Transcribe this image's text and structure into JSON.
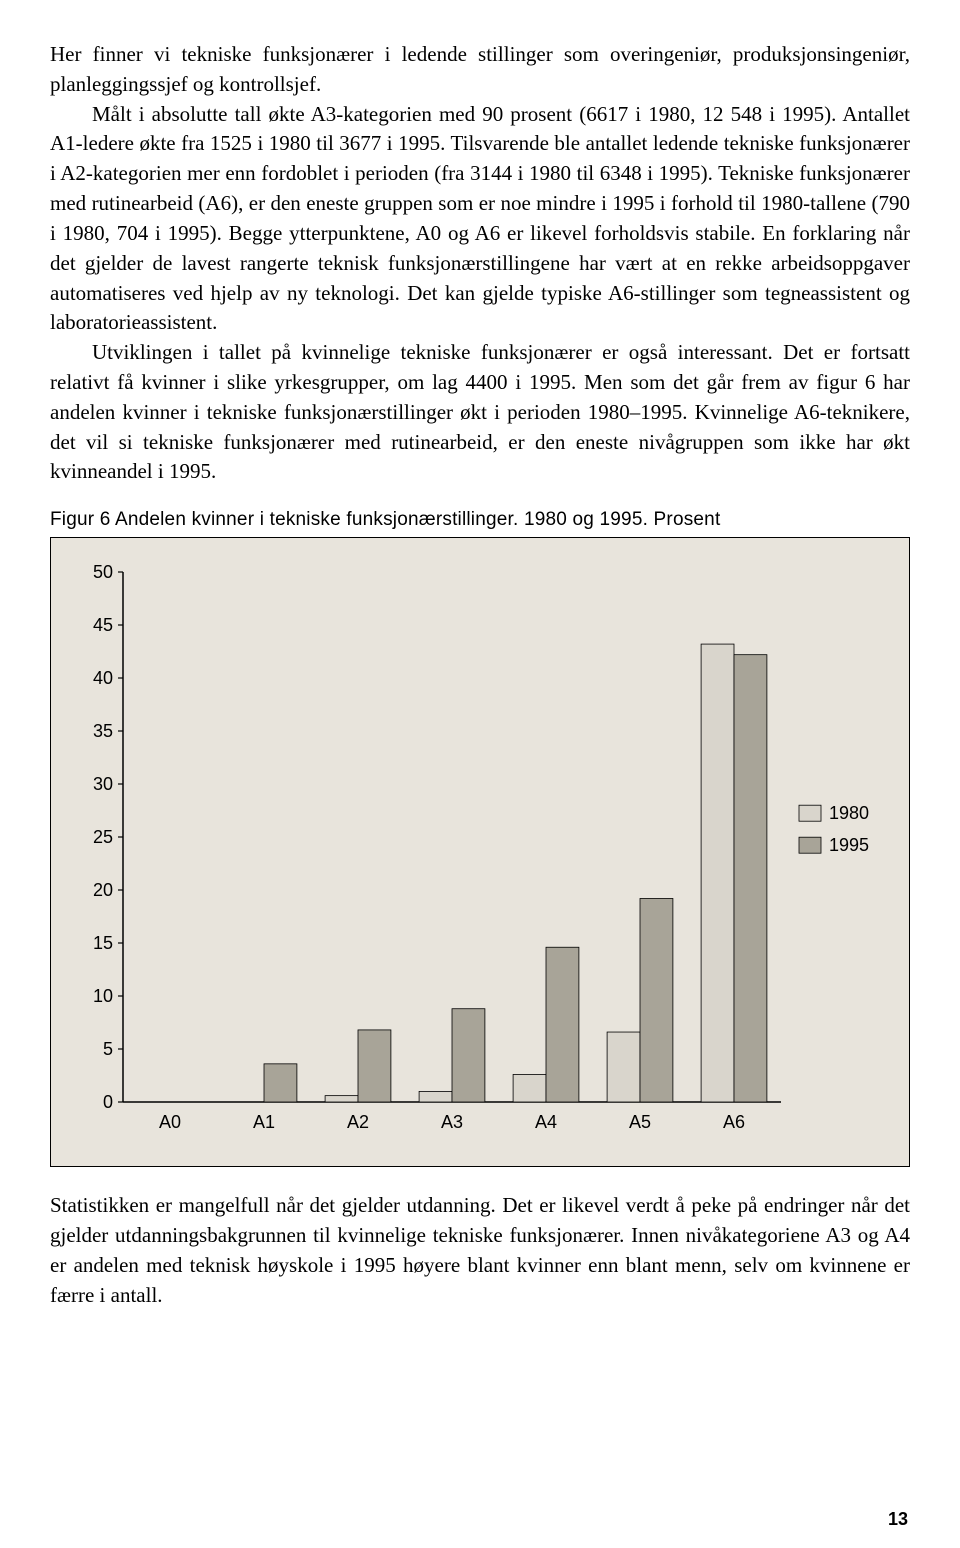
{
  "para1": "Her finner vi tekniske funksjonærer i ledende stillinger som overingeniør, produksjonsingeniør, planleggingssjef og kontrollsjef.",
  "para2": "Målt i absolutte tall økte A3-kategorien med 90 prosent (6617 i 1980, 12 548 i 1995). Antallet A1-ledere økte fra 1525 i 1980 til 3677 i 1995. Tilsvarende ble antallet ledende tekniske funksjonærer i A2-kategorien mer enn fordoblet i perioden (fra 3144 i 1980 til 6348 i 1995). Tekniske funksjonærer med rutinearbeid (A6), er den eneste gruppen som er noe mindre i 1995 i forhold til 1980-tallene (790 i 1980, 704 i 1995). Begge ytterpunktene, A0 og A6 er likevel forholdsvis stabile. En forklaring når det gjelder de lavest rangerte teknisk funksjonærstillingene har vært at en rekke arbeidsoppgaver automatiseres ved hjelp av ny teknologi. Det kan gjelde typiske A6-stillinger som tegneassistent og laboratorieassistent.",
  "para3": "Utviklingen i tallet på kvinnelige tekniske funksjonærer er også interessant. Det er fortsatt relativt få kvinner i slike yrkesgrupper, om lag 4400 i 1995. Men som det går frem av figur 6 har andelen kvinner i tekniske funksjonærstillinger økt i perioden 1980–1995. Kvinnelige A6-teknikere, det vil si tekniske funksjonærer med rutinearbeid, er den eneste nivågruppen som ikke har økt kvinneandel i 1995.",
  "figure_caption": "Figur 6 Andelen kvinner i tekniske funksjonærstillinger. 1980 og 1995. Prosent",
  "chart": {
    "type": "bar",
    "categories": [
      "A0",
      "A1",
      "A2",
      "A3",
      "A4",
      "A5",
      "A6"
    ],
    "series": [
      {
        "name": "1980",
        "values": [
          0,
          0,
          0.6,
          1.0,
          2.6,
          6.6,
          43.2
        ],
        "color": "#d9d5cc"
      },
      {
        "name": "1995",
        "values": [
          0,
          3.6,
          6.8,
          8.8,
          14.6,
          19.2,
          42.2
        ],
        "color": "#a8a498"
      }
    ],
    "ylim": [
      0,
      50
    ],
    "ytick_step": 5,
    "background_color": "#e8e4dc",
    "axis_color": "#000000",
    "label_fontsize": 18,
    "tick_fontsize": 18,
    "legend_fontsize": 18,
    "bar_group_width": 0.7,
    "plot_box_border": "#000000"
  },
  "footer_para": "Statistikken er mangelfull når det gjelder utdanning. Det er likevel verdt å peke på endringer når det gjelder utdanningsbakgrunnen til kvinnelige tekniske funksjonærer. Innen nivåkategoriene A3 og A4 er andelen med teknisk høyskole i 1995 høyere blant kvinner enn blant menn, selv om kvinnene er færre i antall.",
  "page_number": "13"
}
